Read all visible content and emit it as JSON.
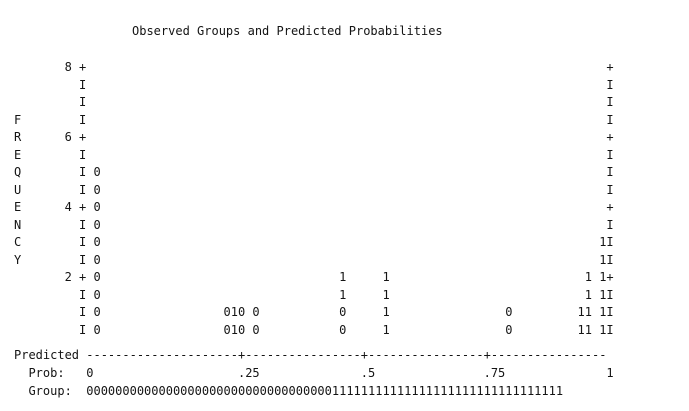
{
  "title": "Observed Groups and Predicted Probabilities",
  "plot_lines": [
    "       8 +                                                                        +",
    "         I                                                                        I",
    "         I                                                                        I",
    "F        I                                                                        I",
    "R      6 +                                                                        +",
    "E        I                                                                        I",
    "Q        I 0                                                                      I",
    "U        I 0                                                                      I",
    "E      4 + 0                                                                      +",
    "N        I 0                                                                      I",
    "C        I 0                                                                     1I",
    "Y        I 0                                                                     1I",
    "       2 + 0                                 1     1                           1 1+",
    "         I 0                                 1     1                           1 1I",
    "         I 0                 010 0           0     1                0         11 1I",
    "         I 0                 010 0           0     1                0         11 1I"
  ],
  "axis": {
    "predicted_line": "Predicted ---------------------+----------------+----------------+----------------",
    "prob_line": "  Prob:   0                    .25              .5               .75              1",
    "group_line": "  Group:  000000000000000000000000000000000011111111111111111111111111111111"
  }
}
